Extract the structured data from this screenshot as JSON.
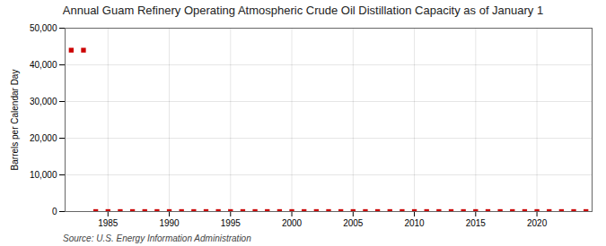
{
  "chart_data": {
    "type": "scatter",
    "title": "Annual Guam Refinery Operating Atmospheric Crude Oil Distillation Capacity as of January 1",
    "ylabel": "Barrels per Calendar Day",
    "source": "Source: U.S. Energy Information Administration",
    "x": [
      1982,
      1983,
      1984,
      1985,
      1986,
      1987,
      1988,
      1989,
      1990,
      1991,
      1992,
      1993,
      1994,
      1995,
      1996,
      1997,
      1998,
      1999,
      2000,
      2001,
      2002,
      2003,
      2004,
      2005,
      2006,
      2007,
      2008,
      2009,
      2010,
      2011,
      2012,
      2013,
      2014,
      2015,
      2016,
      2017,
      2018,
      2019,
      2020,
      2021,
      2022,
      2023,
      2024
    ],
    "values": [
      44000,
      44000,
      0,
      0,
      0,
      0,
      0,
      0,
      0,
      0,
      0,
      0,
      0,
      0,
      0,
      0,
      0,
      0,
      0,
      0,
      0,
      0,
      0,
      0,
      0,
      0,
      0,
      0,
      0,
      0,
      0,
      0,
      0,
      0,
      0,
      0,
      0,
      0,
      0,
      0,
      0,
      0,
      0
    ],
    "color": "#cc0000",
    "marker": "square",
    "xlim": [
      1981.5,
      2024.5
    ],
    "ylim": [
      0,
      50000
    ],
    "xticks": [
      1985,
      1990,
      1995,
      2000,
      2005,
      2010,
      2015,
      2020
    ],
    "yticks": [
      0,
      {
        "value": 10000,
        "label": "10,000"
      },
      {
        "value": 20000,
        "label": "20,000"
      },
      {
        "value": 30000,
        "label": "30,000"
      },
      {
        "value": 40000,
        "label": "40,000"
      },
      {
        "value": 50000,
        "label": "50,000"
      }
    ],
    "grid": true
  }
}
